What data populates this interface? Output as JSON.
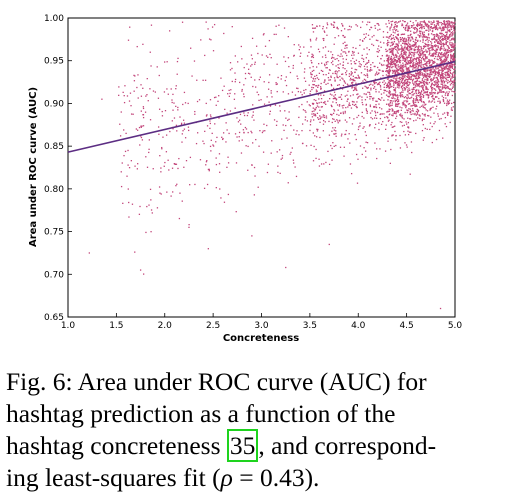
{
  "chart_data": {
    "type": "scatter",
    "xlabel": "Concreteness",
    "ylabel": "Area under ROC curve (AUC)",
    "xlim": [
      1.0,
      5.0
    ],
    "ylim": [
      0.65,
      1.0
    ],
    "xticks": [
      "1.0",
      "1.5",
      "2.0",
      "2.5",
      "3.0",
      "3.5",
      "4.0",
      "4.5",
      "5.0"
    ],
    "yticks": [
      "0.65",
      "0.70",
      "0.75",
      "0.80",
      "0.85",
      "0.90",
      "0.95",
      "1.00"
    ],
    "grid": false,
    "point_color": "#c2457a",
    "line_color": "#5c2d83",
    "fit_line": {
      "x": [
        1.0,
        5.0
      ],
      "y": [
        0.843,
        0.949
      ]
    },
    "series": [
      {
        "points": [
          [
            1.22,
            0.725
          ],
          [
            1.75,
            0.705
          ],
          [
            1.35,
            0.905
          ],
          [
            1.55,
            0.89
          ],
          [
            1.6,
            0.865
          ],
          [
            1.85,
            0.96
          ],
          [
            2.05,
            0.985
          ],
          [
            2.25,
            0.755
          ],
          [
            2.45,
            0.73
          ],
          [
            3.25,
            0.708
          ],
          [
            4.85,
            0.66
          ],
          [
            1.55,
            0.82
          ],
          [
            1.62,
            0.845
          ],
          [
            1.95,
            0.795
          ],
          [
            2.9,
            0.745
          ],
          [
            3.7,
            0.735
          ]
        ]
      }
    ]
  },
  "caption": {
    "line1": "Fig. 6: Area under ROC curve (AUC) for",
    "line2": "hashtag prediction as a function of the",
    "line3a": "hashtag concreteness ",
    "ref": "35",
    "line3b": ", and correspond-",
    "line4a": "ing least-squares fit (",
    "rho": "ρ",
    "line4b": " = 0.43)."
  }
}
